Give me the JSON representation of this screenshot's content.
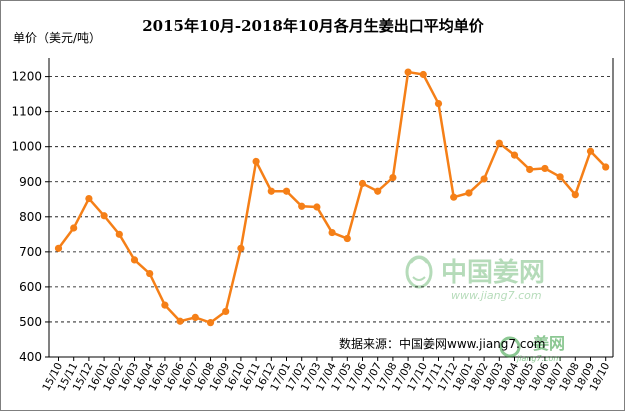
{
  "chart_data": {
    "type": "line",
    "title": "2015年10月-2018年10月各月生姜出口平均单价",
    "ylabel": "单价（美元/吨）",
    "xlabel": "",
    "ylim": [
      400,
      1250
    ],
    "yticks": [
      400,
      500,
      600,
      700,
      800,
      900,
      1000,
      1100,
      1200
    ],
    "grid": true,
    "legend": "none",
    "categories": [
      "15/10",
      "15/11",
      "15/12",
      "16/01",
      "16/02",
      "16/03",
      "16/04",
      "16/05",
      "16/06",
      "16/07",
      "16/08",
      "16/09",
      "16/10",
      "16/11",
      "16/12",
      "17/01",
      "17/02",
      "17/03",
      "17/04",
      "17/05",
      "17/06",
      "17/07",
      "17/08",
      "17/09",
      "17/10",
      "17/11",
      "17/12",
      "18/01",
      "18/02",
      "18/03",
      "18/04",
      "18/05",
      "18/06",
      "18/07",
      "18/08",
      "18/09",
      "18/10"
    ],
    "series": [
      {
        "color": "#f57f17",
        "values": [
          710,
          768,
          852,
          803,
          750,
          677,
          638,
          548,
          502,
          513,
          498,
          530,
          710,
          958,
          873,
          873,
          830,
          828,
          755,
          738,
          895,
          873,
          912,
          1213,
          1206,
          1123,
          856,
          868,
          908,
          1010,
          976,
          935,
          938,
          914,
          863,
          987,
          942
        ]
      }
    ],
    "source": "数据来源：中国姜网www.jiang7.com",
    "watermark": {
      "brand": "中国姜网",
      "url": "www.jiang7.com",
      "badge": "姜网",
      "badge_url": "jiang7.com"
    }
  }
}
